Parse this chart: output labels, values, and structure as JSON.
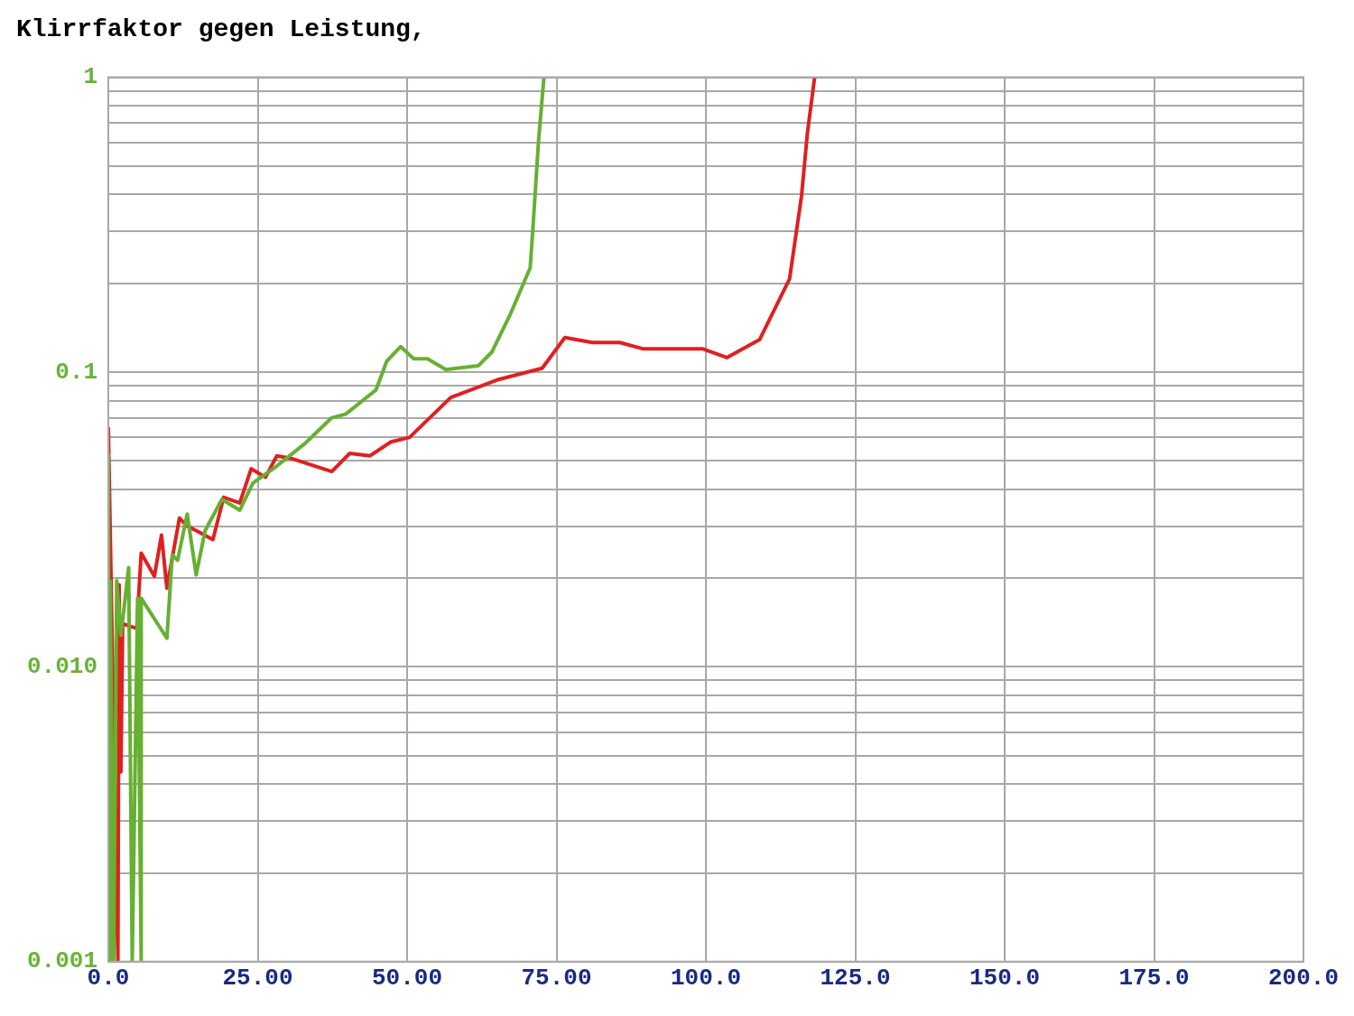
{
  "chart_data": {
    "type": "line",
    "title": "Klirrfaktor gegen Leistung,",
    "log": "y",
    "grid": true,
    "legend": false,
    "marker": "none",
    "line_style": "solid",
    "xlim": [
      0,
      200
    ],
    "xticks": [
      {
        "value": 0,
        "label": "0.0"
      },
      {
        "value": 25,
        "label": "25.00"
      },
      {
        "value": 50,
        "label": "50.00"
      },
      {
        "value": 75,
        "label": "75.00"
      },
      {
        "value": 100,
        "label": "100.0"
      },
      {
        "value": 125,
        "label": "125.0"
      },
      {
        "value": 150,
        "label": "150.0"
      },
      {
        "value": 175,
        "label": "175.0"
      },
      {
        "value": 200,
        "label": "200.0"
      }
    ],
    "ylim": [
      0.001,
      1
    ],
    "yticks": [
      {
        "value": 0.001,
        "label": "0.001"
      },
      {
        "value": 0.002,
        "label": null
      },
      {
        "value": 0.003,
        "label": null
      },
      {
        "value": 0.004,
        "label": null
      },
      {
        "value": 0.005,
        "label": null
      },
      {
        "value": 0.006,
        "label": null
      },
      {
        "value": 0.007,
        "label": null
      },
      {
        "value": 0.008,
        "label": null
      },
      {
        "value": 0.009,
        "label": null
      },
      {
        "value": 0.01,
        "label": "0.010"
      },
      {
        "value": 0.02,
        "label": null
      },
      {
        "value": 0.03,
        "label": null
      },
      {
        "value": 0.04,
        "label": null
      },
      {
        "value": 0.05,
        "label": null
      },
      {
        "value": 0.06,
        "label": null
      },
      {
        "value": 0.07,
        "label": null
      },
      {
        "value": 0.08,
        "label": null
      },
      {
        "value": 0.09,
        "label": null
      },
      {
        "value": 0.1,
        "label": "0.1"
      },
      {
        "value": 0.2,
        "label": null
      },
      {
        "value": 0.3,
        "label": null
      },
      {
        "value": 0.4,
        "label": null
      },
      {
        "value": 0.5,
        "label": null
      },
      {
        "value": 0.6,
        "label": null
      },
      {
        "value": 0.7,
        "label": null
      },
      {
        "value": 0.8,
        "label": null
      },
      {
        "value": 0.9,
        "label": null
      },
      {
        "value": 1,
        "label": "1"
      }
    ],
    "series": [
      {
        "color": "#66b032",
        "x": [
          0,
          0.15,
          0.3,
          0.9,
          1.4,
          2.1,
          3.4,
          4,
          4.9,
          5.5,
          5.5,
          9.8,
          10.7,
          11.6,
          13.2,
          14.7,
          16.2,
          19,
          22,
          24.2,
          28.2,
          32.8,
          37.4,
          39.7,
          44.8,
          46.6,
          48.9,
          51.1,
          53.4,
          56.5,
          61.9,
          64.2,
          67.2,
          70.6,
          71.1,
          72,
          72.9
        ],
        "values": [
          0.053,
          0.001,
          0.0196,
          0.001,
          0.0196,
          0.0128,
          0.0217,
          0.001,
          0.0171,
          0.001,
          0.0171,
          0.0125,
          0.024,
          0.023,
          0.033,
          0.0205,
          0.029,
          0.037,
          0.034,
          0.042,
          0.048,
          0.057,
          0.07,
          0.072,
          0.087,
          0.109,
          0.122,
          0.111,
          0.111,
          0.102,
          0.105,
          0.117,
          0.156,
          0.226,
          0.318,
          0.61,
          1
        ]
      },
      {
        "color": "#e02020",
        "x": [
          0,
          1.6,
          1.8,
          2.1,
          2.4,
          4.75,
          5.5,
          7.7,
          8.9,
          9.8,
          11.9,
          13.2,
          14.7,
          17.5,
          19.3,
          22,
          23.9,
          26.3,
          28.2,
          30.5,
          37.4,
          40.4,
          43.8,
          47.3,
          50.4,
          57.3,
          65,
          72.6,
          76.4,
          81,
          85.6,
          89.4,
          99.4,
          103.5,
          109,
          114,
          116,
          117,
          118.2
        ],
        "values": [
          0.065,
          0.001,
          0.019,
          0.0044,
          0.014,
          0.0135,
          0.0243,
          0.0203,
          0.028,
          0.0185,
          0.032,
          0.03,
          0.029,
          0.027,
          0.0376,
          0.036,
          0.047,
          0.044,
          0.052,
          0.051,
          0.046,
          0.053,
          0.052,
          0.058,
          0.06,
          0.082,
          0.094,
          0.103,
          0.131,
          0.126,
          0.126,
          0.12,
          0.12,
          0.112,
          0.129,
          0.207,
          0.395,
          0.65,
          1
        ]
      }
    ]
  }
}
